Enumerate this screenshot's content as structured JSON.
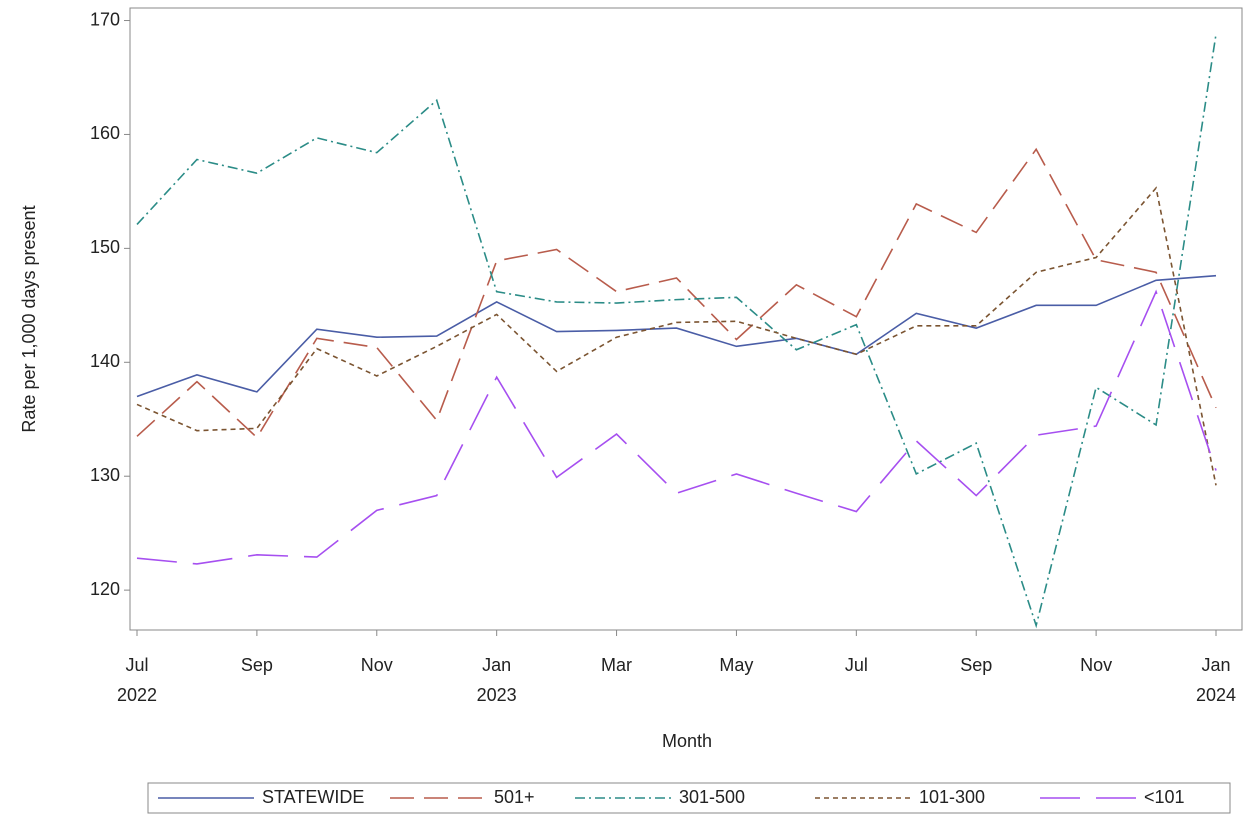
{
  "chart_data": {
    "type": "line",
    "x_label": "Month",
    "y_label": "Rate per 1,000 days present",
    "categories": [
      "Jul\n2022",
      null,
      "Sep",
      null,
      "Nov",
      null,
      "Jan\n2023",
      null,
      "Mar",
      null,
      "May",
      null,
      "Jul",
      null,
      "Sep",
      null,
      "Nov",
      null,
      "Jan\n2024"
    ],
    "ylim": [
      116.5,
      171.1
    ],
    "yticks": [
      120,
      130,
      140,
      150,
      160,
      170
    ],
    "series": [
      {
        "name": "STATEWIDE",
        "color": "#4a5da6",
        "dash": "none",
        "values": [
          137.0,
          138.9,
          137.4,
          142.9,
          142.2,
          142.3,
          145.3,
          142.7,
          142.8,
          143.0,
          141.4,
          142.1,
          140.7,
          144.3,
          143.0,
          145.0,
          145.0,
          147.2,
          147.6
        ]
      },
      {
        "name": "501+",
        "color": "#b85c4c",
        "dash": "24,10",
        "values": [
          133.5,
          138.3,
          133.4,
          142.1,
          141.3,
          134.9,
          148.9,
          149.9,
          146.2,
          147.4,
          142.0,
          146.8,
          144.0,
          153.9,
          151.4,
          158.7,
          149.0,
          147.9,
          136.0
        ]
      },
      {
        "name": "301-500",
        "color": "#2b8c87",
        "dash": "10,4,2,4",
        "values": [
          152.1,
          157.8,
          156.6,
          159.7,
          158.4,
          163.0,
          146.2,
          145.3,
          145.2,
          145.5,
          145.7,
          141.1,
          143.3,
          130.2,
          132.9,
          116.9,
          137.8,
          134.5,
          168.8
        ]
      },
      {
        "name": "101-300",
        "color": "#7b5431",
        "dash": "5,4",
        "values": [
          136.3,
          134.0,
          134.2,
          141.2,
          138.8,
          141.4,
          144.2,
          139.2,
          142.2,
          143.5,
          143.6,
          142.1,
          140.7,
          143.2,
          143.2,
          147.9,
          149.2,
          155.3,
          129.2
        ]
      },
      {
        "name": "<101",
        "color": "#a64ff0",
        "dash": "40,16",
        "values": [
          122.8,
          122.3,
          123.1,
          122.9,
          127.0,
          128.3,
          138.7,
          129.9,
          133.7,
          128.5,
          130.2,
          128.5,
          126.9,
          133.1,
          128.3,
          133.6,
          134.4,
          146.2,
          130.5
        ]
      }
    ]
  }
}
